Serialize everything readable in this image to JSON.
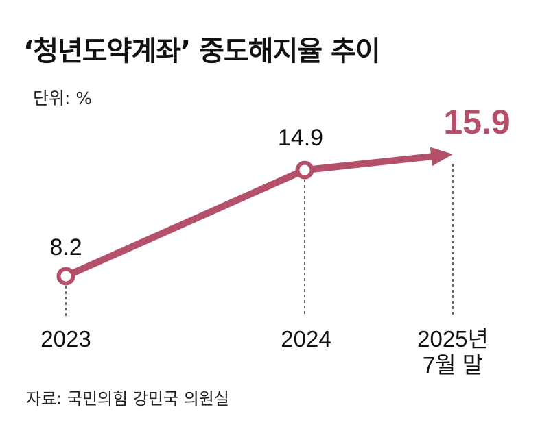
{
  "title": "‘청년도약계좌’ 중도해지율 추이",
  "unit": "단위: %",
  "source": "자료: 국민의힘 강민국 의원실",
  "colors": {
    "accent": "#b5506a",
    "text": "#111111",
    "guide": "#333333"
  },
  "chart_data": {
    "type": "line",
    "categories": [
      "2023",
      "2024",
      "2025년 7월 말"
    ],
    "category_lines": [
      [
        "2023"
      ],
      [
        "2024"
      ],
      [
        "2025년",
        "7월 말"
      ]
    ],
    "values": [
      8.2,
      14.9,
      15.9
    ],
    "labels": [
      "8.2",
      "14.9",
      "15.9"
    ],
    "ylabel": "단위: %",
    "grid": false,
    "last_point_style": "arrow"
  }
}
